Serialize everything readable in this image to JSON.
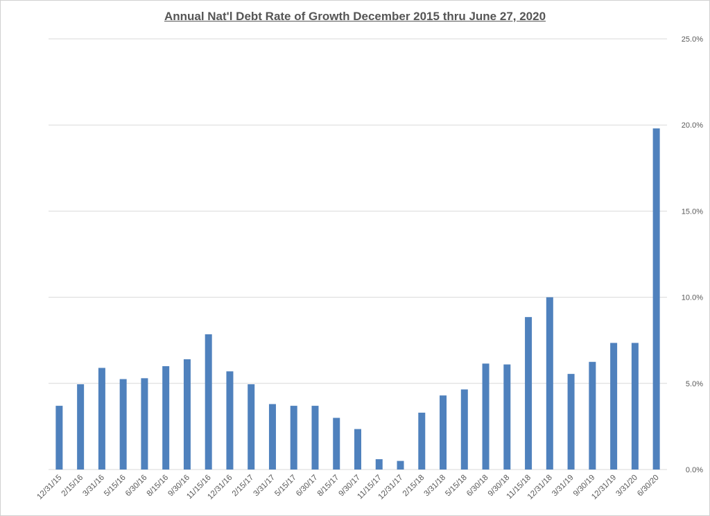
{
  "chart_data": {
    "type": "bar",
    "title": "Annual Nat'l Debt Rate of Growth December 2015 thru June 27, 2020",
    "xlabel": "",
    "ylabel": "",
    "y_axis_side": "right",
    "ylim": [
      0,
      25
    ],
    "yticks": [
      0,
      5,
      10,
      15,
      20,
      25
    ],
    "ytick_labels": [
      "0.0%",
      "5.0%",
      "10.0%",
      "15.0%",
      "20.0%",
      "25.0%"
    ],
    "grid": true,
    "legend": "none",
    "bar_color": "#4f81bd",
    "categories": [
      "12/31/15",
      "2/15/16",
      "3/31/16",
      "5/15/16",
      "6/30/16",
      "8/15/16",
      "9/30/16",
      "11/15/16",
      "12/31/16",
      "2/15/17",
      "3/31/17",
      "5/15/17",
      "6/30/17",
      "8/15/17",
      "9/30/17",
      "11/15/17",
      "12/31/17",
      "2/15/18",
      "3/31/18",
      "5/15/18",
      "6/30/18",
      "9/30/18",
      "11/15/18",
      "12/31/18",
      "3/31/19",
      "9/30/19",
      "12/31/19",
      "3/31/20",
      "6/30/20"
    ],
    "values": [
      3.7,
      4.95,
      5.9,
      5.25,
      5.3,
      6.0,
      6.4,
      7.85,
      5.7,
      4.95,
      3.8,
      3.7,
      3.7,
      3.0,
      2.35,
      0.6,
      0.5,
      3.3,
      4.3,
      4.65,
      6.15,
      6.1,
      8.85,
      10.0,
      5.55,
      6.25,
      7.35,
      7.35,
      19.8
    ]
  }
}
